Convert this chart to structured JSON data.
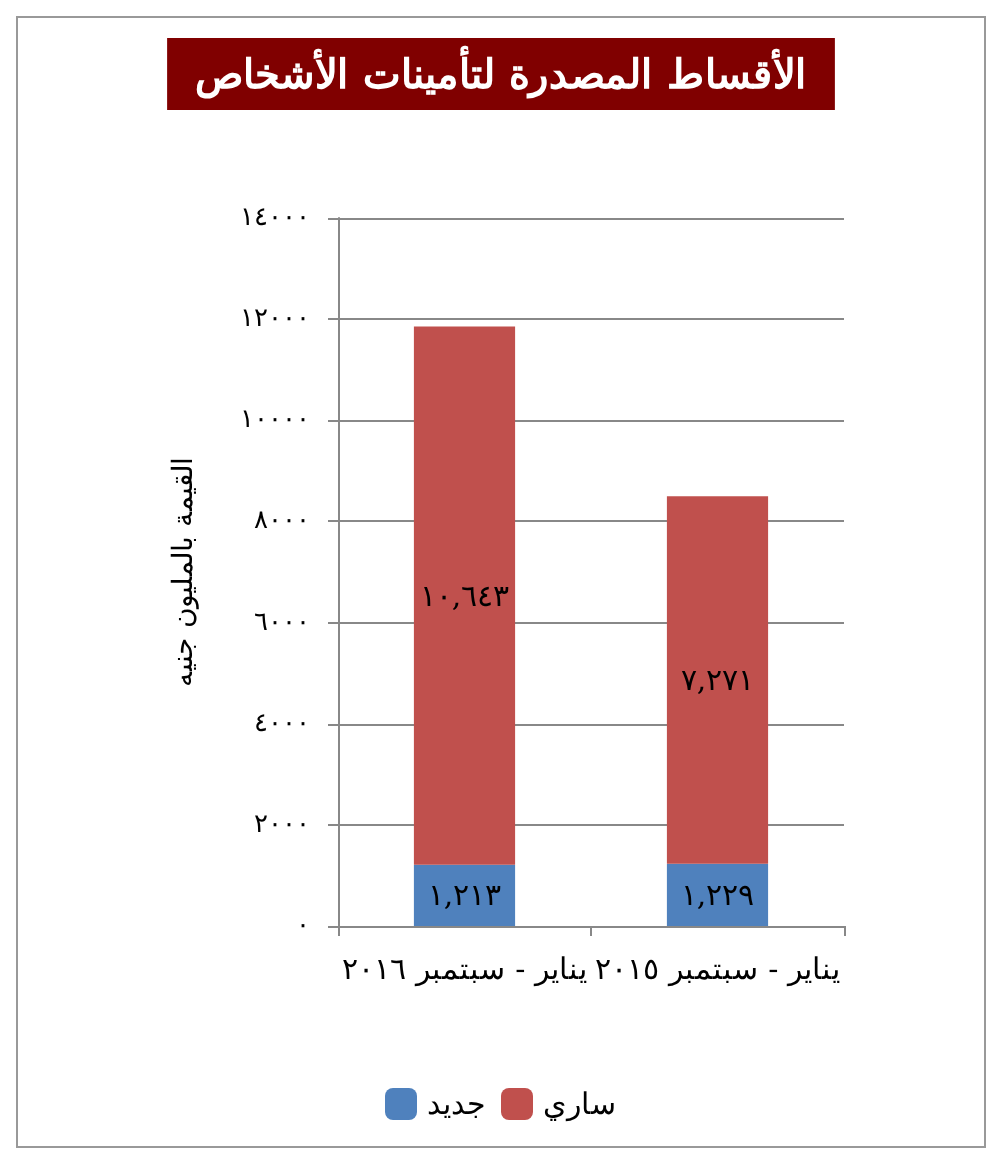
{
  "chart_data": {
    "type": "bar",
    "title": "الأقساط المصدرة لتأمينات الأشخاص",
    "ylabel": "القيمة بالمليون جنيه",
    "categories": [
      "يناير - سبتمبر ٢٠١٦",
      "يناير - سبتمبر ٢٠١٥"
    ],
    "stacked": true,
    "series": [
      {
        "name": "جديد",
        "color": "#4f81bd",
        "values": [
          1213,
          1229
        ],
        "value_labels": [
          "١,٢١٣",
          "١,٢٢٩"
        ]
      },
      {
        "name": "ساري",
        "color": "#c0504d",
        "values": [
          10643,
          7271
        ],
        "value_labels": [
          "١٠,٦٤٣",
          "٧,٢٧١"
        ]
      }
    ],
    "ylim": [
      0,
      14000
    ],
    "yticks": [
      {
        "value": 0,
        "label": "٠"
      },
      {
        "value": 2000,
        "label": "٢٠٠٠"
      },
      {
        "value": 4000,
        "label": "٤٠٠٠"
      },
      {
        "value": 6000,
        "label": "٦٠٠٠"
      },
      {
        "value": 8000,
        "label": "٨٠٠٠"
      },
      {
        "value": 10000,
        "label": "١٠٠٠٠"
      },
      {
        "value": 12000,
        "label": "١٢٠٠٠"
      },
      {
        "value": 14000,
        "label": "١٤٠٠٠"
      }
    ],
    "grid": "y",
    "legend": "bottom"
  }
}
